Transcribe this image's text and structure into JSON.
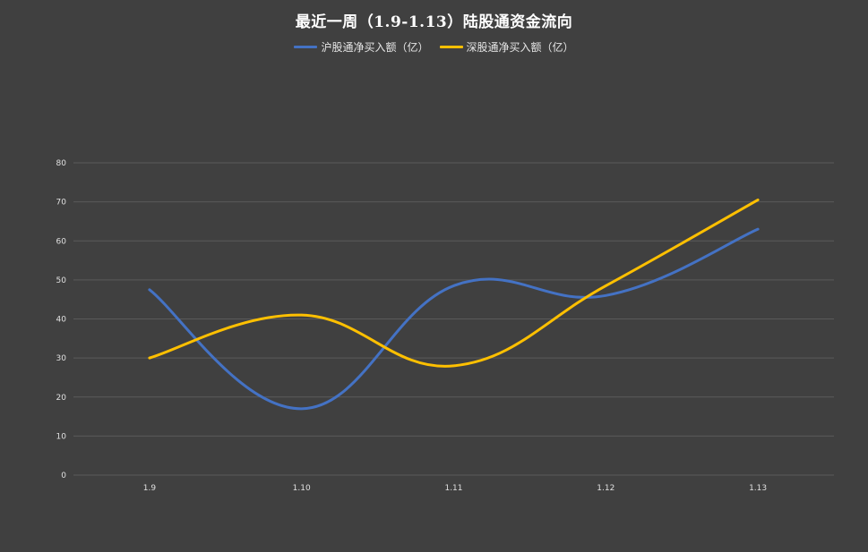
{
  "chart_data": {
    "type": "line",
    "title": "最近一周（1.9-1.13）陆股通资金流向",
    "categories": [
      "1.9",
      "1.10",
      "1.11",
      "1.12",
      "1.13"
    ],
    "series": [
      {
        "name": "沪股通净买入额（亿）",
        "color": "#4472c4",
        "values": [
          47.5,
          17.0,
          48.5,
          46.0,
          63.0
        ]
      },
      {
        "name": "深股通净买入额（亿）",
        "color": "#ffc000",
        "values": [
          30.0,
          41.0,
          28.0,
          48.5,
          70.5
        ]
      }
    ],
    "ylim": [
      0,
      80
    ],
    "yticks": [
      0,
      10,
      20,
      30,
      40,
      50,
      60,
      70,
      80
    ],
    "grid": true,
    "smooth": true,
    "legend": "top-center",
    "background": "#404040"
  }
}
